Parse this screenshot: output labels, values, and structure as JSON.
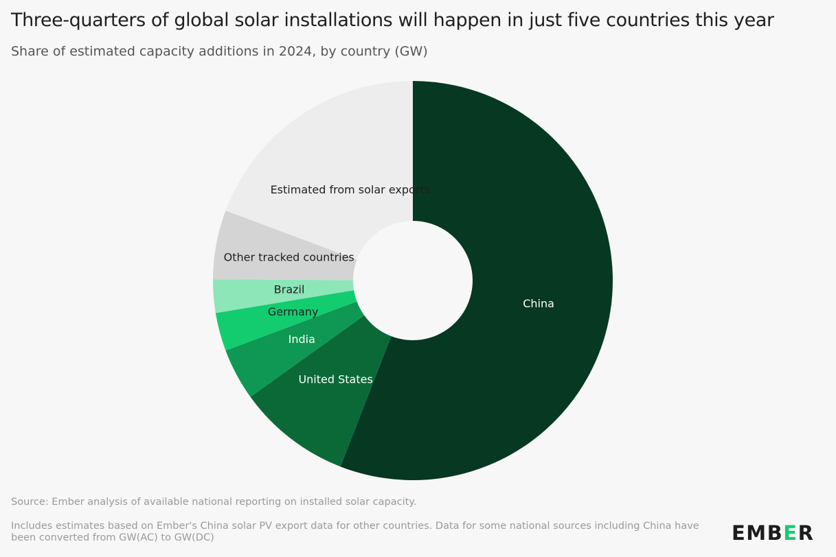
{
  "chart_data": {
    "type": "pie",
    "title": "Three-quarters of global solar installations will happen in just five countries this year",
    "subtitle": "Share of estimated capacity additions in 2024, by country (GW)",
    "slices": [
      {
        "label": "China",
        "value": 55.9,
        "color": "#063822",
        "label_color": "#ffffff"
      },
      {
        "label": "United States",
        "value": 9.2,
        "color": "#0b6938",
        "label_color": "#ffffff"
      },
      {
        "label": "India",
        "value": 4.2,
        "color": "#0e9853",
        "label_color": "#ffffff"
      },
      {
        "label": "Germany",
        "value": 3.1,
        "color": "#14cc70",
        "label_color": "#1f1f1f"
      },
      {
        "label": "Brazil",
        "value": 2.7,
        "color": "#8ce6b8",
        "label_color": "#1f1f1f"
      },
      {
        "label": "Other tracked countries",
        "value": 5.6,
        "color": "#d4d4d4",
        "label_color": "#1f1f1f"
      },
      {
        "label": "Estimated from solar exports",
        "value": 19.3,
        "color": "#ededed",
        "label_color": "#1f1f1f"
      }
    ]
  },
  "footer": {
    "source": "Source: Ember analysis of available national reporting on installed solar capacity.",
    "note": "Includes estimates based on Ember's China solar PV export data for other countries. Data for some national sources including China have been converted from GW(AC) to GW(DC)"
  },
  "logo": {
    "pre": "EMB",
    "accent": "E",
    "post": "R"
  }
}
